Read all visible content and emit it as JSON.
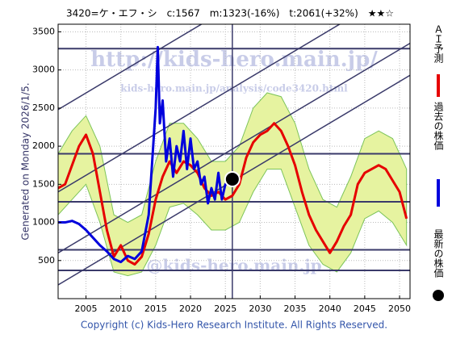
{
  "chart_data": {
    "type": "line",
    "title": "3420=ケ・エフ・シ　c:1567　m:1323(-16%)　t:2061(+32%)　★★☆",
    "side_note": "Generated on Monday 2026/1/5.",
    "footer": "Copyright (c) Kids-Hero Research Institute. All Rights Reserved.",
    "watermarks": [
      "http://kids-hero.main.jp/",
      "kids-hero.main.jp/analysis/code3420.html",
      "@kids-hero.main.jp"
    ],
    "xlim": [
      2001,
      2051.5
    ],
    "ylim": [
      0,
      3600
    ],
    "xticks": [
      2005,
      2010,
      2015,
      2020,
      2025,
      2030,
      2035,
      2040,
      2045,
      2050
    ],
    "yticks": [
      500,
      1000,
      1500,
      2000,
      2500,
      3000,
      3500
    ],
    "grid": true,
    "band": {
      "color": "#e6f3a0",
      "edge": "#7cc45a",
      "x": [
        2001,
        2003,
        2005,
        2007,
        2009,
        2011,
        2013,
        2015,
        2017,
        2019,
        2021,
        2023,
        2025,
        2027,
        2029,
        2031,
        2033,
        2035,
        2037,
        2039,
        2041,
        2043,
        2045,
        2047,
        2049,
        2051
      ],
      "upper": [
        1900,
        2200,
        2400,
        2000,
        1100,
        1000,
        1100,
        1800,
        2300,
        2300,
        2100,
        1800,
        1800,
        2000,
        2500,
        2700,
        2650,
        2300,
        1700,
        1300,
        1200,
        1600,
        2100,
        2200,
        2100,
        1700
      ],
      "lower": [
        1100,
        1300,
        1500,
        1000,
        350,
        300,
        350,
        700,
        1200,
        1250,
        1100,
        900,
        900,
        1000,
        1400,
        1700,
        1700,
        1200,
        700,
        450,
        350,
        600,
        1050,
        1150,
        1000,
        700
      ]
    },
    "hlines": {
      "color": "#3a3a6a",
      "values": [
        3280,
        1900,
        1270,
        640,
        370
      ]
    },
    "vline": {
      "color": "#3a3a6a",
      "value": 2026
    },
    "trendlines": {
      "color": "#3a3a6a",
      "x": [
        2001,
        2051.5
      ],
      "starts": [
        2480,
        1400,
        600,
        180
      ],
      "ends": [
        5230,
        4150,
        3350,
        2930
      ]
    },
    "series": [
      {
        "name": "ＡＩ予測",
        "color": "#e60000",
        "x": [
          2001,
          2002,
          2003,
          2004,
          2005,
          2006,
          2007,
          2008,
          2009,
          2010,
          2011,
          2012,
          2013,
          2014,
          2015,
          2016,
          2017,
          2018,
          2019,
          2020,
          2021,
          2022,
          2023,
          2024,
          2025,
          2026,
          2027,
          2028,
          2029,
          2030,
          2031,
          2032,
          2033,
          2034,
          2035,
          2036,
          2037,
          2038,
          2039,
          2040,
          2041,
          2042,
          2043,
          2044,
          2045,
          2046,
          2047,
          2048,
          2049,
          2050,
          2051
        ],
        "values": [
          1450,
          1500,
          1750,
          2000,
          2150,
          1900,
          1400,
          900,
          550,
          700,
          500,
          450,
          550,
          850,
          1300,
          1600,
          1800,
          1650,
          1800,
          1750,
          1650,
          1450,
          1350,
          1400,
          1300,
          1350,
          1500,
          1850,
          2050,
          2150,
          2200,
          2300,
          2200,
          2000,
          1750,
          1400,
          1100,
          900,
          750,
          600,
          750,
          950,
          1100,
          1500,
          1650,
          1700,
          1750,
          1700,
          1550,
          1400,
          1050
        ]
      },
      {
        "name": "過去の株価",
        "color": "#0000dd",
        "x": [
          2001,
          2002,
          2003,
          2004,
          2005,
          2006,
          2007,
          2008,
          2009,
          2010,
          2011,
          2012,
          2013,
          2014,
          2014.5,
          2015,
          2015.3,
          2015.6,
          2016,
          2016.5,
          2017,
          2017.5,
          2018,
          2018.5,
          2019,
          2019.5,
          2020,
          2020.5,
          2021,
          2021.5,
          2022,
          2022.5,
          2023,
          2023.5,
          2024,
          2024.5,
          2025,
          2025.5,
          2026
        ],
        "values": [
          1000,
          1000,
          1020,
          980,
          900,
          800,
          700,
          620,
          520,
          480,
          560,
          520,
          620,
          1100,
          1800,
          2500,
          3300,
          2300,
          2600,
          1800,
          2100,
          1600,
          2000,
          1800,
          2200,
          1700,
          2100,
          1700,
          1800,
          1500,
          1600,
          1250,
          1450,
          1300,
          1650,
          1300,
          1500,
          1550,
          1567
        ]
      }
    ],
    "latest": {
      "name": "最新の株価",
      "color": "#000000",
      "x": 2026,
      "value": 1567
    }
  }
}
